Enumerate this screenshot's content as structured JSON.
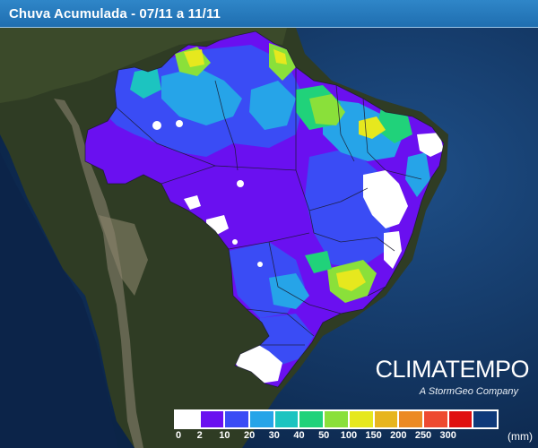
{
  "header": {
    "title": "Chuva Acumulada - 07/11 a 11/11"
  },
  "branding": {
    "name": "CLIMATEMPO",
    "tagline": "A StormGeo Company"
  },
  "legend": {
    "unit": "(mm)",
    "labels": [
      "0",
      "2",
      "10",
      "20",
      "30",
      "40",
      "50",
      "100",
      "150",
      "200",
      "250",
      "300"
    ],
    "colors": [
      "#ffffff",
      "#6a10f0",
      "#3a4cf5",
      "#26a4e8",
      "#1cc4c0",
      "#20d27a",
      "#8ae03a",
      "#e6e81e",
      "#e7b51e",
      "#ec8a24",
      "#ee4a30",
      "#e01010",
      "#0f3a7a"
    ]
  },
  "map": {
    "background_colors": {
      "ocean": "#0f2d56",
      "ocean_light": "#1d4d86",
      "land_dark": "#2e3b22",
      "andes": "#7d7a66"
    }
  }
}
